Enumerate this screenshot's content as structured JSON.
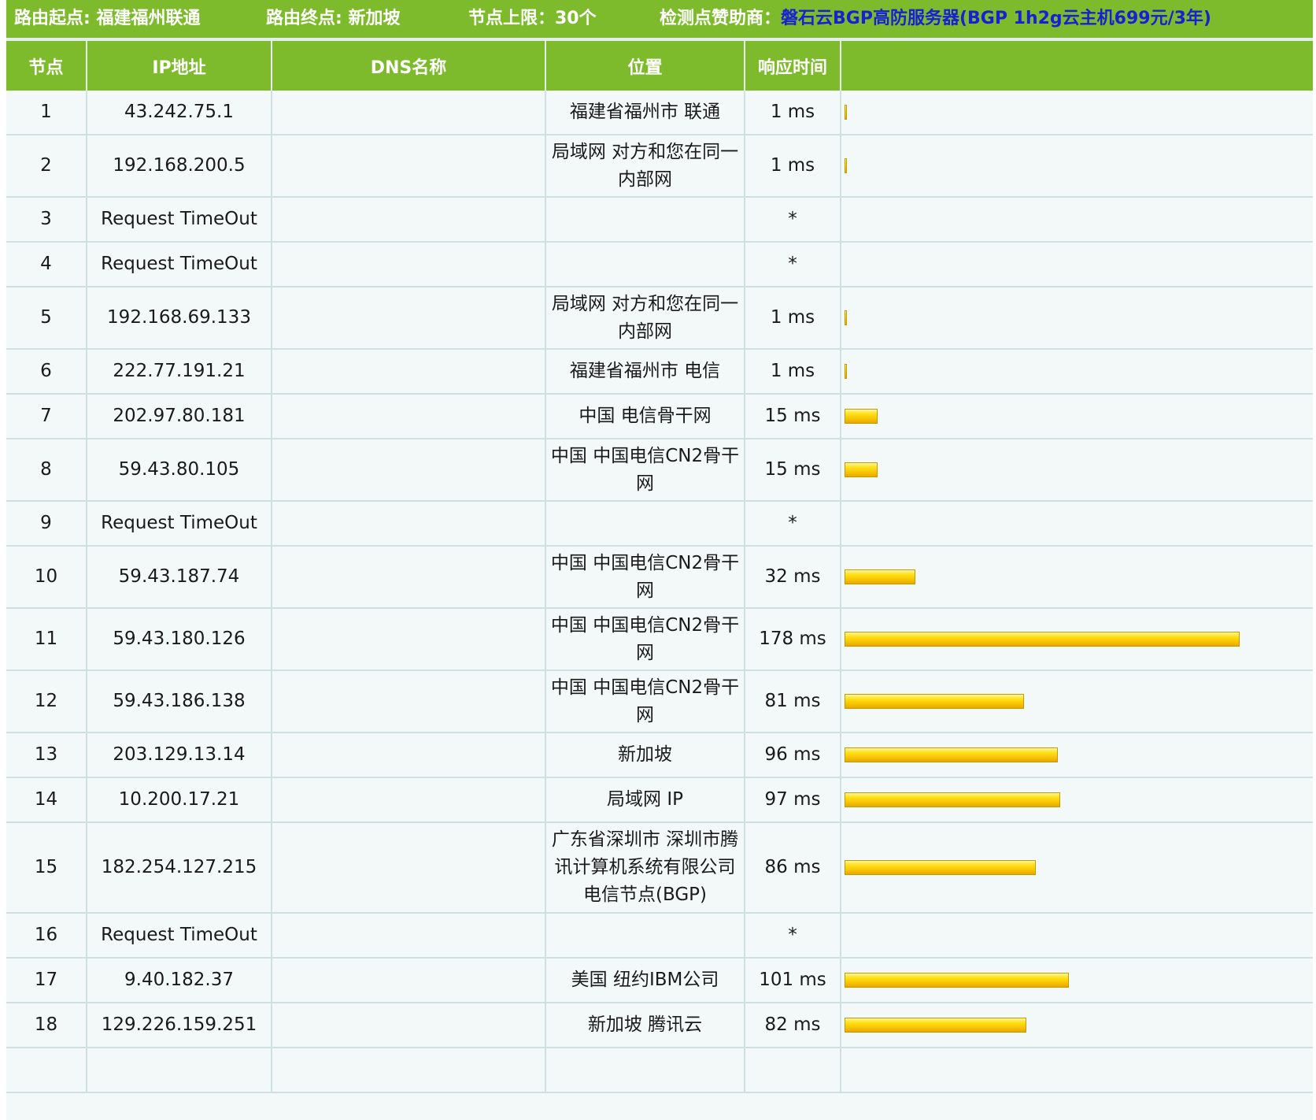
{
  "header": {
    "route_start": "路由起点: 福建福州联通",
    "route_end": "路由终点: 新加坡",
    "node_limit": "节点上限：30个",
    "sponsor_label": "检测点赞助商：",
    "sponsor_link": "磐石云BGP高防服务器(BGP 1h2g云主机699元/3年)"
  },
  "columns": [
    "节点",
    "IP地址",
    "DNS名称",
    "位置",
    "响应时间",
    ""
  ],
  "max_ms": 178,
  "colors": {
    "header_green": "#7dbb2d",
    "bar_yellow": "#f7c300",
    "link_blue": "#1621d6"
  },
  "rows": [
    {
      "node": "1",
      "ip": "43.242.75.1",
      "dns": "",
      "location": "福建省福州市 联通",
      "time": "1 ms",
      "ms": 1
    },
    {
      "node": "2",
      "ip": "192.168.200.5",
      "dns": "",
      "location": "局域网 对方和您在同一内部网",
      "time": "1 ms",
      "ms": 1
    },
    {
      "node": "3",
      "ip": "Request TimeOut",
      "dns": "",
      "location": "",
      "time": "*",
      "ms": 0
    },
    {
      "node": "4",
      "ip": "Request TimeOut",
      "dns": "",
      "location": "",
      "time": "*",
      "ms": 0
    },
    {
      "node": "5",
      "ip": "192.168.69.133",
      "dns": "",
      "location": "局域网 对方和您在同一内部网",
      "time": "1 ms",
      "ms": 1
    },
    {
      "node": "6",
      "ip": "222.77.191.21",
      "dns": "",
      "location": "福建省福州市 电信",
      "time": "1 ms",
      "ms": 1
    },
    {
      "node": "7",
      "ip": "202.97.80.181",
      "dns": "",
      "location": "中国 电信骨干网",
      "time": "15 ms",
      "ms": 15
    },
    {
      "node": "8",
      "ip": "59.43.80.105",
      "dns": "",
      "location": "中国 中国电信CN2骨干网",
      "time": "15 ms",
      "ms": 15
    },
    {
      "node": "9",
      "ip": "Request TimeOut",
      "dns": "",
      "location": "",
      "time": "*",
      "ms": 0
    },
    {
      "node": "10",
      "ip": "59.43.187.74",
      "dns": "",
      "location": "中国 中国电信CN2骨干网",
      "time": "32 ms",
      "ms": 32
    },
    {
      "node": "11",
      "ip": "59.43.180.126",
      "dns": "",
      "location": "中国 中国电信CN2骨干网",
      "time": "178 ms",
      "ms": 178
    },
    {
      "node": "12",
      "ip": "59.43.186.138",
      "dns": "",
      "location": "中国 中国电信CN2骨干网",
      "time": "81 ms",
      "ms": 81
    },
    {
      "node": "13",
      "ip": "203.129.13.14",
      "dns": "",
      "location": "新加坡",
      "time": "96 ms",
      "ms": 96
    },
    {
      "node": "14",
      "ip": "10.200.17.21",
      "dns": "",
      "location": "局域网 IP",
      "time": "97 ms",
      "ms": 97
    },
    {
      "node": "15",
      "ip": "182.254.127.215",
      "dns": "",
      "location": "广东省深圳市 深圳市腾讯计算机系统有限公司电信节点(BGP)",
      "time": "86 ms",
      "ms": 86
    },
    {
      "node": "16",
      "ip": "Request TimeOut",
      "dns": "",
      "location": "",
      "time": "*",
      "ms": 0
    },
    {
      "node": "17",
      "ip": "9.40.182.37",
      "dns": "",
      "location": "美国 纽约IBM公司",
      "time": "101 ms",
      "ms": 101
    },
    {
      "node": "18",
      "ip": "129.226.159.251",
      "dns": "",
      "location": "新加坡 腾讯云",
      "time": "82 ms",
      "ms": 82
    }
  ]
}
